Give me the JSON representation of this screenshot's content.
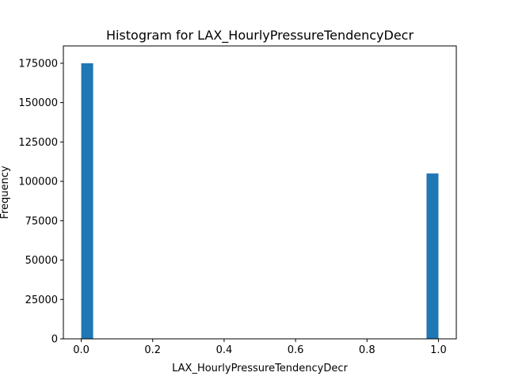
{
  "chart_data": {
    "type": "bar",
    "title": "Histogram for LAX_HourlyPressureTendencyDecr",
    "xlabel": "LAX_HourlyPressureTendencyDecr",
    "ylabel": "Frequency",
    "xlim": [
      -0.05,
      1.05
    ],
    "ylim": [
      0,
      186000
    ],
    "x_ticks": [
      {
        "value": 0.0,
        "label": "0.0"
      },
      {
        "value": 0.2,
        "label": "0.2"
      },
      {
        "value": 0.4,
        "label": "0.4"
      },
      {
        "value": 0.6,
        "label": "0.6"
      },
      {
        "value": 0.8,
        "label": "0.8"
      },
      {
        "value": 1.0,
        "label": "1.0"
      }
    ],
    "y_ticks": [
      {
        "value": 0,
        "label": "0"
      },
      {
        "value": 25000,
        "label": "25000"
      },
      {
        "value": 50000,
        "label": "50000"
      },
      {
        "value": 75000,
        "label": "75000"
      },
      {
        "value": 100000,
        "label": "100000"
      },
      {
        "value": 125000,
        "label": "125000"
      },
      {
        "value": 150000,
        "label": "150000"
      },
      {
        "value": 175000,
        "label": "175000"
      }
    ],
    "bins": [
      {
        "start": 0.0,
        "end": 0.0333,
        "count": 175000
      },
      {
        "start": 0.9667,
        "end": 1.0,
        "count": 105000
      }
    ],
    "grid": false,
    "legend": "none",
    "bar_color": "#1f77b4"
  }
}
